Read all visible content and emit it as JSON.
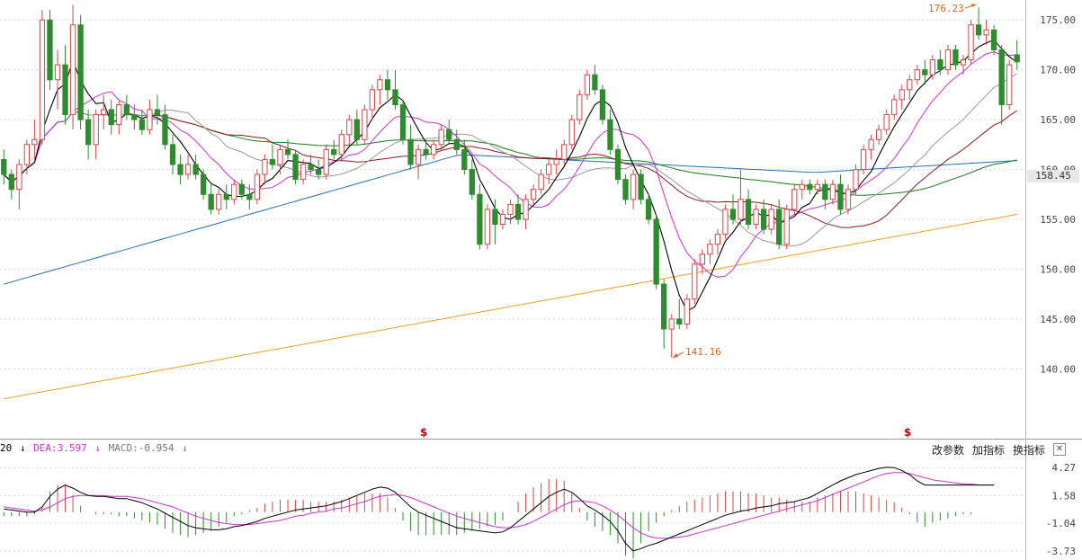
{
  "chart_data": [
    {
      "type": "candlestick",
      "title": "",
      "ylim": [
        133,
        177
      ],
      "yticks": [
        "175.00",
        "170.00",
        "165.00",
        "160.00",
        "155.00",
        "150.00",
        "145.00",
        "140.00"
      ],
      "current_price": "158.45",
      "high_annotation": "176.23",
      "low_annotation": "141.16",
      "marker_symbol": "$",
      "colors": {
        "up": "#d64545",
        "down": "#2e8b2e",
        "ma5": "#000000",
        "ma10": "#cc33cc",
        "ma20": "#999999",
        "ma30": "#8b1a1a",
        "ma60": "#1a7a1a",
        "ma120": "#1e6fbf",
        "ma250": "#f0a020"
      },
      "candles": [
        [
          161.0,
          162.0,
          158.5,
          159.5
        ],
        [
          159.5,
          160.0,
          157.0,
          158.0
        ],
        [
          158.0,
          161.0,
          156.0,
          160.5
        ],
        [
          160.5,
          163.0,
          159.5,
          162.5
        ],
        [
          162.5,
          165.0,
          161.0,
          163.0
        ],
        [
          163.0,
          176.0,
          162.5,
          175.0
        ],
        [
          175.0,
          176.0,
          168.0,
          169.0
        ],
        [
          169.0,
          172.0,
          166.0,
          170.5
        ],
        [
          170.5,
          172.5,
          164.5,
          165.5
        ],
        [
          165.5,
          176.5,
          164.0,
          174.5
        ],
        [
          174.5,
          175.5,
          164.0,
          165.0
        ],
        [
          165.0,
          166.0,
          161.0,
          162.5
        ],
        [
          162.5,
          166.0,
          161.0,
          165.5
        ],
        [
          165.5,
          167.5,
          164.0,
          166.0
        ],
        [
          166.0,
          167.0,
          163.5,
          164.5
        ],
        [
          164.5,
          167.0,
          163.5,
          166.5
        ],
        [
          166.5,
          167.5,
          165.0,
          165.5
        ],
        [
          165.5,
          166.5,
          164.0,
          165.0
        ],
        [
          165.0,
          166.0,
          163.5,
          164.0
        ],
        [
          164.0,
          167.0,
          163.5,
          166.0
        ],
        [
          166.0,
          167.5,
          164.5,
          165.5
        ],
        [
          165.5,
          166.5,
          162.0,
          162.5
        ],
        [
          162.5,
          163.5,
          159.5,
          160.5
        ],
        [
          160.5,
          161.5,
          158.5,
          159.5
        ],
        [
          159.5,
          161.5,
          159.0,
          160.5
        ],
        [
          160.5,
          161.5,
          159.0,
          159.5
        ],
        [
          159.5,
          160.0,
          157.0,
          157.5
        ],
        [
          157.5,
          158.5,
          155.5,
          156.0
        ],
        [
          156.0,
          158.0,
          155.5,
          157.5
        ],
        [
          157.5,
          158.5,
          156.0,
          157.0
        ],
        [
          157.0,
          159.0,
          156.5,
          158.5
        ],
        [
          158.5,
          159.0,
          157.0,
          157.5
        ],
        [
          157.5,
          158.5,
          156.0,
          157.0
        ],
        [
          157.0,
          160.0,
          156.5,
          159.5
        ],
        [
          159.5,
          161.5,
          158.5,
          161.0
        ],
        [
          161.0,
          162.5,
          160.0,
          160.5
        ],
        [
          160.5,
          162.5,
          159.5,
          162.0
        ],
        [
          162.0,
          163.0,
          161.0,
          161.5
        ],
        [
          161.5,
          162.0,
          158.5,
          159.0
        ],
        [
          159.0,
          161.0,
          158.5,
          160.5
        ],
        [
          160.5,
          161.5,
          159.5,
          160.0
        ],
        [
          160.0,
          161.0,
          159.0,
          159.5
        ],
        [
          159.5,
          162.5,
          159.0,
          162.0
        ],
        [
          162.0,
          163.0,
          161.0,
          161.5
        ],
        [
          161.5,
          164.0,
          161.0,
          163.5
        ],
        [
          163.5,
          165.5,
          162.5,
          165.0
        ],
        [
          165.0,
          166.0,
          162.5,
          163.0
        ],
        [
          163.0,
          166.5,
          162.5,
          166.0
        ],
        [
          166.0,
          168.5,
          165.0,
          168.0
        ],
        [
          168.0,
          169.5,
          166.5,
          169.0
        ],
        [
          169.0,
          170.0,
          167.0,
          168.0
        ],
        [
          168.0,
          170.0,
          166.0,
          166.5
        ],
        [
          166.5,
          167.0,
          162.5,
          163.0
        ],
        [
          163.0,
          164.5,
          160.0,
          160.5
        ],
        [
          160.5,
          162.5,
          159.0,
          162.0
        ],
        [
          162.0,
          163.0,
          161.0,
          161.5
        ],
        [
          161.5,
          163.0,
          161.0,
          162.5
        ],
        [
          162.5,
          164.5,
          162.0,
          164.0
        ],
        [
          164.0,
          165.0,
          162.5,
          163.0
        ],
        [
          163.0,
          164.0,
          161.5,
          162.0
        ],
        [
          162.0,
          163.0,
          159.5,
          160.0
        ],
        [
          160.0,
          161.0,
          157.0,
          157.5
        ],
        [
          157.5,
          158.5,
          152.0,
          152.5
        ],
        [
          152.5,
          156.5,
          152.0,
          156.0
        ],
        [
          156.0,
          157.0,
          152.5,
          154.5
        ],
        [
          154.5,
          156.0,
          154.0,
          155.5
        ],
        [
          155.5,
          157.0,
          154.5,
          156.5
        ],
        [
          156.5,
          157.5,
          154.5,
          155.0
        ],
        [
          155.0,
          157.5,
          154.0,
          157.0
        ],
        [
          157.0,
          158.5,
          156.5,
          158.0
        ],
        [
          158.0,
          160.0,
          157.5,
          159.5
        ],
        [
          159.5,
          161.0,
          158.5,
          160.5
        ],
        [
          160.5,
          162.0,
          159.5,
          161.0
        ],
        [
          161.0,
          163.0,
          160.5,
          162.5
        ],
        [
          162.5,
          165.5,
          162.0,
          165.0
        ],
        [
          165.0,
          168.0,
          164.5,
          167.5
        ],
        [
          167.5,
          170.0,
          167.0,
          169.5
        ],
        [
          169.5,
          170.5,
          167.5,
          168.0
        ],
        [
          168.0,
          168.5,
          164.5,
          165.0
        ],
        [
          165.0,
          166.0,
          161.5,
          162.0
        ],
        [
          162.0,
          162.5,
          158.5,
          159.0
        ],
        [
          159.0,
          159.5,
          156.5,
          157.0
        ],
        [
          157.0,
          160.0,
          156.0,
          159.5
        ],
        [
          159.5,
          160.0,
          156.5,
          157.0
        ],
        [
          157.0,
          157.5,
          154.5,
          155.0
        ],
        [
          155.0,
          155.5,
          148.0,
          148.5
        ],
        [
          148.5,
          149.0,
          142.0,
          144.0
        ],
        [
          144.0,
          145.5,
          141.16,
          145.0
        ],
        [
          145.0,
          147.0,
          144.0,
          144.5
        ],
        [
          144.5,
          147.5,
          144.0,
          147.0
        ],
        [
          147.0,
          151.0,
          146.5,
          150.5
        ],
        [
          150.5,
          152.0,
          149.5,
          151.5
        ],
        [
          151.5,
          153.0,
          150.5,
          152.5
        ],
        [
          152.5,
          154.0,
          151.5,
          153.5
        ],
        [
          153.5,
          156.5,
          153.0,
          156.0
        ],
        [
          156.0,
          157.5,
          154.5,
          155.0
        ],
        [
          155.0,
          160.0,
          154.5,
          157.0
        ],
        [
          157.0,
          158.0,
          154.0,
          154.5
        ],
        [
          154.5,
          156.5,
          154.0,
          156.0
        ],
        [
          156.0,
          157.0,
          153.5,
          154.0
        ],
        [
          154.0,
          156.5,
          153.5,
          156.0
        ],
        [
          156.0,
          157.0,
          152.0,
          152.5
        ],
        [
          152.5,
          156.5,
          152.0,
          156.0
        ],
        [
          156.0,
          158.5,
          155.5,
          158.0
        ],
        [
          158.0,
          159.0,
          157.0,
          158.5
        ],
        [
          158.5,
          159.0,
          157.5,
          158.0
        ],
        [
          158.0,
          159.0,
          157.5,
          158.5
        ],
        [
          158.5,
          159.0,
          156.0,
          157.0
        ],
        [
          157.0,
          159.0,
          156.5,
          158.5
        ],
        [
          158.5,
          159.5,
          155.5,
          156.0
        ],
        [
          156.0,
          158.5,
          155.5,
          158.0
        ],
        [
          158.0,
          160.5,
          157.5,
          160.0
        ],
        [
          160.0,
          162.5,
          159.5,
          162.0
        ],
        [
          162.0,
          163.5,
          161.0,
          163.0
        ],
        [
          163.0,
          164.5,
          162.5,
          164.0
        ],
        [
          164.0,
          166.0,
          163.5,
          165.5
        ],
        [
          165.5,
          167.5,
          165.0,
          167.0
        ],
        [
          167.0,
          168.5,
          166.0,
          168.0
        ],
        [
          168.0,
          169.5,
          167.0,
          169.0
        ],
        [
          169.0,
          170.5,
          168.5,
          170.0
        ],
        [
          170.0,
          171.0,
          168.5,
          169.5
        ],
        [
          169.5,
          171.5,
          169.0,
          171.0
        ],
        [
          171.0,
          172.0,
          169.5,
          170.0
        ],
        [
          170.0,
          172.5,
          169.5,
          172.0
        ],
        [
          172.0,
          172.5,
          170.0,
          170.5
        ],
        [
          170.5,
          171.5,
          169.5,
          171.0
        ],
        [
          171.0,
          175.0,
          170.5,
          174.5
        ],
        [
          174.5,
          176.23,
          173.0,
          173.5
        ],
        [
          173.5,
          175.0,
          172.5,
          174.0
        ],
        [
          174.0,
          174.5,
          171.5,
          172.0
        ],
        [
          172.0,
          172.5,
          164.5,
          166.5
        ],
        [
          166.5,
          171.0,
          166.0,
          170.5
        ],
        [
          171.5,
          173.0,
          170.0,
          170.8
        ]
      ],
      "dif": [
        0.3,
        0.2,
        0.1,
        0.0,
        0.0,
        0.5,
        1.5,
        2.2,
        2.6,
        2.3,
        1.9,
        1.6,
        1.5,
        1.5,
        1.4,
        1.3,
        1.3,
        1.1,
        0.9,
        0.6,
        0.3,
        -0.1,
        -0.5,
        -0.9,
        -1.3,
        -1.5,
        -1.6,
        -1.7,
        -1.7,
        -1.6,
        -1.4,
        -1.3,
        -1.1,
        -0.9,
        -0.6,
        -0.4,
        -0.2,
        0.0,
        0.2,
        0.3,
        0.4,
        0.5,
        0.6,
        0.8,
        1.0,
        1.3,
        1.6,
        1.9,
        2.2,
        2.4,
        2.3,
        1.9,
        1.2,
        0.5,
        0.0,
        -0.3,
        -0.6,
        -0.9,
        -1.2,
        -1.5,
        -1.6,
        -1.7,
        -1.8,
        -1.9,
        -2.0,
        -1.9,
        -1.5,
        -0.9,
        -0.3,
        0.3,
        0.9,
        1.5,
        1.9,
        2.2,
        1.9,
        1.3,
        0.6,
        0.2,
        -0.3,
        -0.9,
        -1.8,
        -3.0,
        -3.73,
        -3.5,
        -3.2,
        -3.0,
        -2.7,
        -2.4,
        -2.1,
        -1.8,
        -1.5,
        -1.2,
        -0.9,
        -0.6,
        -0.3,
        -0.1,
        0.1,
        0.2,
        0.4,
        0.5,
        0.6,
        0.8,
        0.9,
        1.0,
        1.2,
        1.4,
        1.8,
        2.2,
        2.6,
        3.0,
        3.3,
        3.6,
        3.8,
        4.0,
        4.2,
        4.3,
        4.27,
        4.0,
        3.6,
        3.0,
        2.6,
        2.6,
        2.6,
        2.6,
        2.6,
        2.6,
        2.6,
        2.6,
        2.6,
        2.6
      ],
      "dea": [
        0.5,
        0.4,
        0.3,
        0.2,
        0.1,
        0.2,
        0.5,
        0.9,
        1.3,
        1.5,
        1.6,
        1.6,
        1.6,
        1.6,
        1.5,
        1.5,
        1.5,
        1.4,
        1.3,
        1.1,
        0.9,
        0.7,
        0.5,
        0.2,
        -0.1,
        -0.4,
        -0.6,
        -0.8,
        -1.0,
        -1.1,
        -1.2,
        -1.2,
        -1.2,
        -1.1,
        -1.0,
        -0.9,
        -0.8,
        -0.6,
        -0.4,
        -0.3,
        -0.1,
        0.0,
        0.1,
        0.3,
        0.4,
        0.6,
        0.8,
        1.0,
        1.3,
        1.5,
        1.6,
        1.7,
        1.6,
        1.4,
        1.1,
        0.8,
        0.5,
        0.2,
        -0.1,
        -0.4,
        -0.6,
        -0.8,
        -1.0,
        -1.2,
        -1.4,
        -1.5,
        -1.5,
        -1.4,
        -1.2,
        -0.9,
        -0.5,
        -0.1,
        0.3,
        0.7,
        1.0,
        1.1,
        1.0,
        0.9,
        0.6,
        0.2,
        -0.3,
        -0.9,
        -1.5,
        -2.0,
        -2.3,
        -2.5,
        -2.5,
        -2.5,
        -2.4,
        -2.3,
        -2.1,
        -1.9,
        -1.7,
        -1.5,
        -1.3,
        -1.1,
        -0.9,
        -0.7,
        -0.5,
        -0.3,
        -0.1,
        0.1,
        0.3,
        0.5,
        0.7,
        0.9,
        1.1,
        1.4,
        1.7,
        2.0,
        2.3,
        2.6,
        2.9,
        3.2,
        3.5,
        3.7,
        3.8,
        3.8,
        3.7,
        3.5,
        3.3,
        3.1,
        3.0,
        2.9,
        2.8,
        2.7,
        2.7,
        2.6,
        2.6,
        2.6
      ]
    },
    {
      "type": "macd",
      "ylim": [
        -4.6,
        5.5
      ],
      "yticks": [
        "4.27",
        "1.58",
        "-1.04",
        "-3.73"
      ],
      "legend": [
        {
          "text": "20",
          "color": "#000000"
        },
        {
          "text": "↓",
          "color": "#000000"
        },
        {
          "text": "DEA:3.597",
          "color": "#cc33cc"
        },
        {
          "text": "↓",
          "color": "#cc33cc"
        },
        {
          "text": "MACD:-0.954",
          "color": "#777777"
        },
        {
          "text": "↓",
          "color": "#777777"
        }
      ]
    }
  ],
  "toolbar": {
    "change_params": "改参数",
    "add_indicator": "加指标",
    "switch_indicator": "换指标",
    "close": "✕"
  }
}
